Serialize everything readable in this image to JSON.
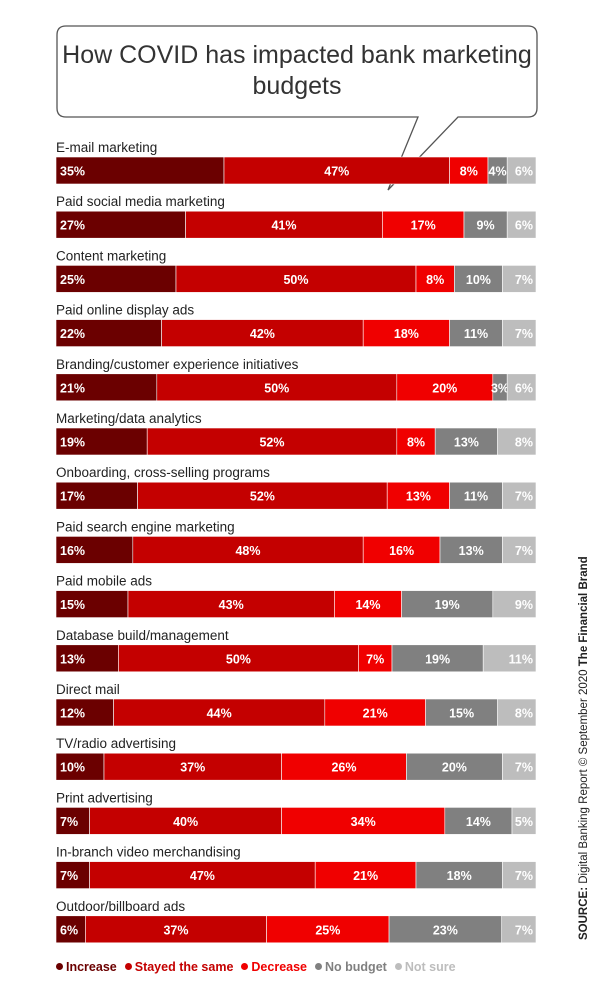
{
  "chart_data": {
    "type": "bar",
    "stacked": true,
    "orientation": "horizontal",
    "title": "How COVID has impacted bank marketing budgets",
    "categories": [
      "E-mail marketing",
      "Paid social media marketing",
      "Content marketing",
      "Paid online display ads",
      "Branding/customer experience initiatives",
      "Marketing/data analytics",
      "Onboarding, cross-selling programs",
      "Paid search engine marketing",
      "Paid mobile ads",
      "Database build/management",
      "Direct mail",
      "TV/radio advertising",
      "Print advertising",
      "In-branch video merchandising",
      "Outdoor/billboard ads"
    ],
    "series": [
      {
        "name": "Increase",
        "color": "#6b0000",
        "values": [
          35,
          27,
          25,
          22,
          21,
          19,
          17,
          16,
          15,
          13,
          12,
          10,
          7,
          7,
          6
        ]
      },
      {
        "name": "Stayed the same",
        "color": "#c40000",
        "values": [
          47,
          41,
          50,
          42,
          50,
          52,
          52,
          48,
          43,
          50,
          44,
          37,
          40,
          47,
          37
        ]
      },
      {
        "name": "Decrease",
        "color": "#f00000",
        "values": [
          8,
          17,
          8,
          18,
          20,
          8,
          13,
          16,
          14,
          7,
          21,
          26,
          34,
          21,
          25
        ]
      },
      {
        "name": "No budget",
        "color": "#808080",
        "values": [
          4,
          9,
          10,
          11,
          3,
          13,
          11,
          13,
          19,
          19,
          15,
          20,
          14,
          18,
          23
        ]
      },
      {
        "name": "Not sure",
        "color": "#bdbdbd",
        "values": [
          6,
          6,
          7,
          7,
          6,
          8,
          7,
          7,
          9,
          11,
          8,
          7,
          5,
          7,
          7
        ]
      }
    ],
    "value_suffix": "%",
    "legend_position": "bottom"
  },
  "source": {
    "label": "SOURCE:",
    "text": "Digital Banking Report © September 2020",
    "brand": "The Financial Brand"
  }
}
